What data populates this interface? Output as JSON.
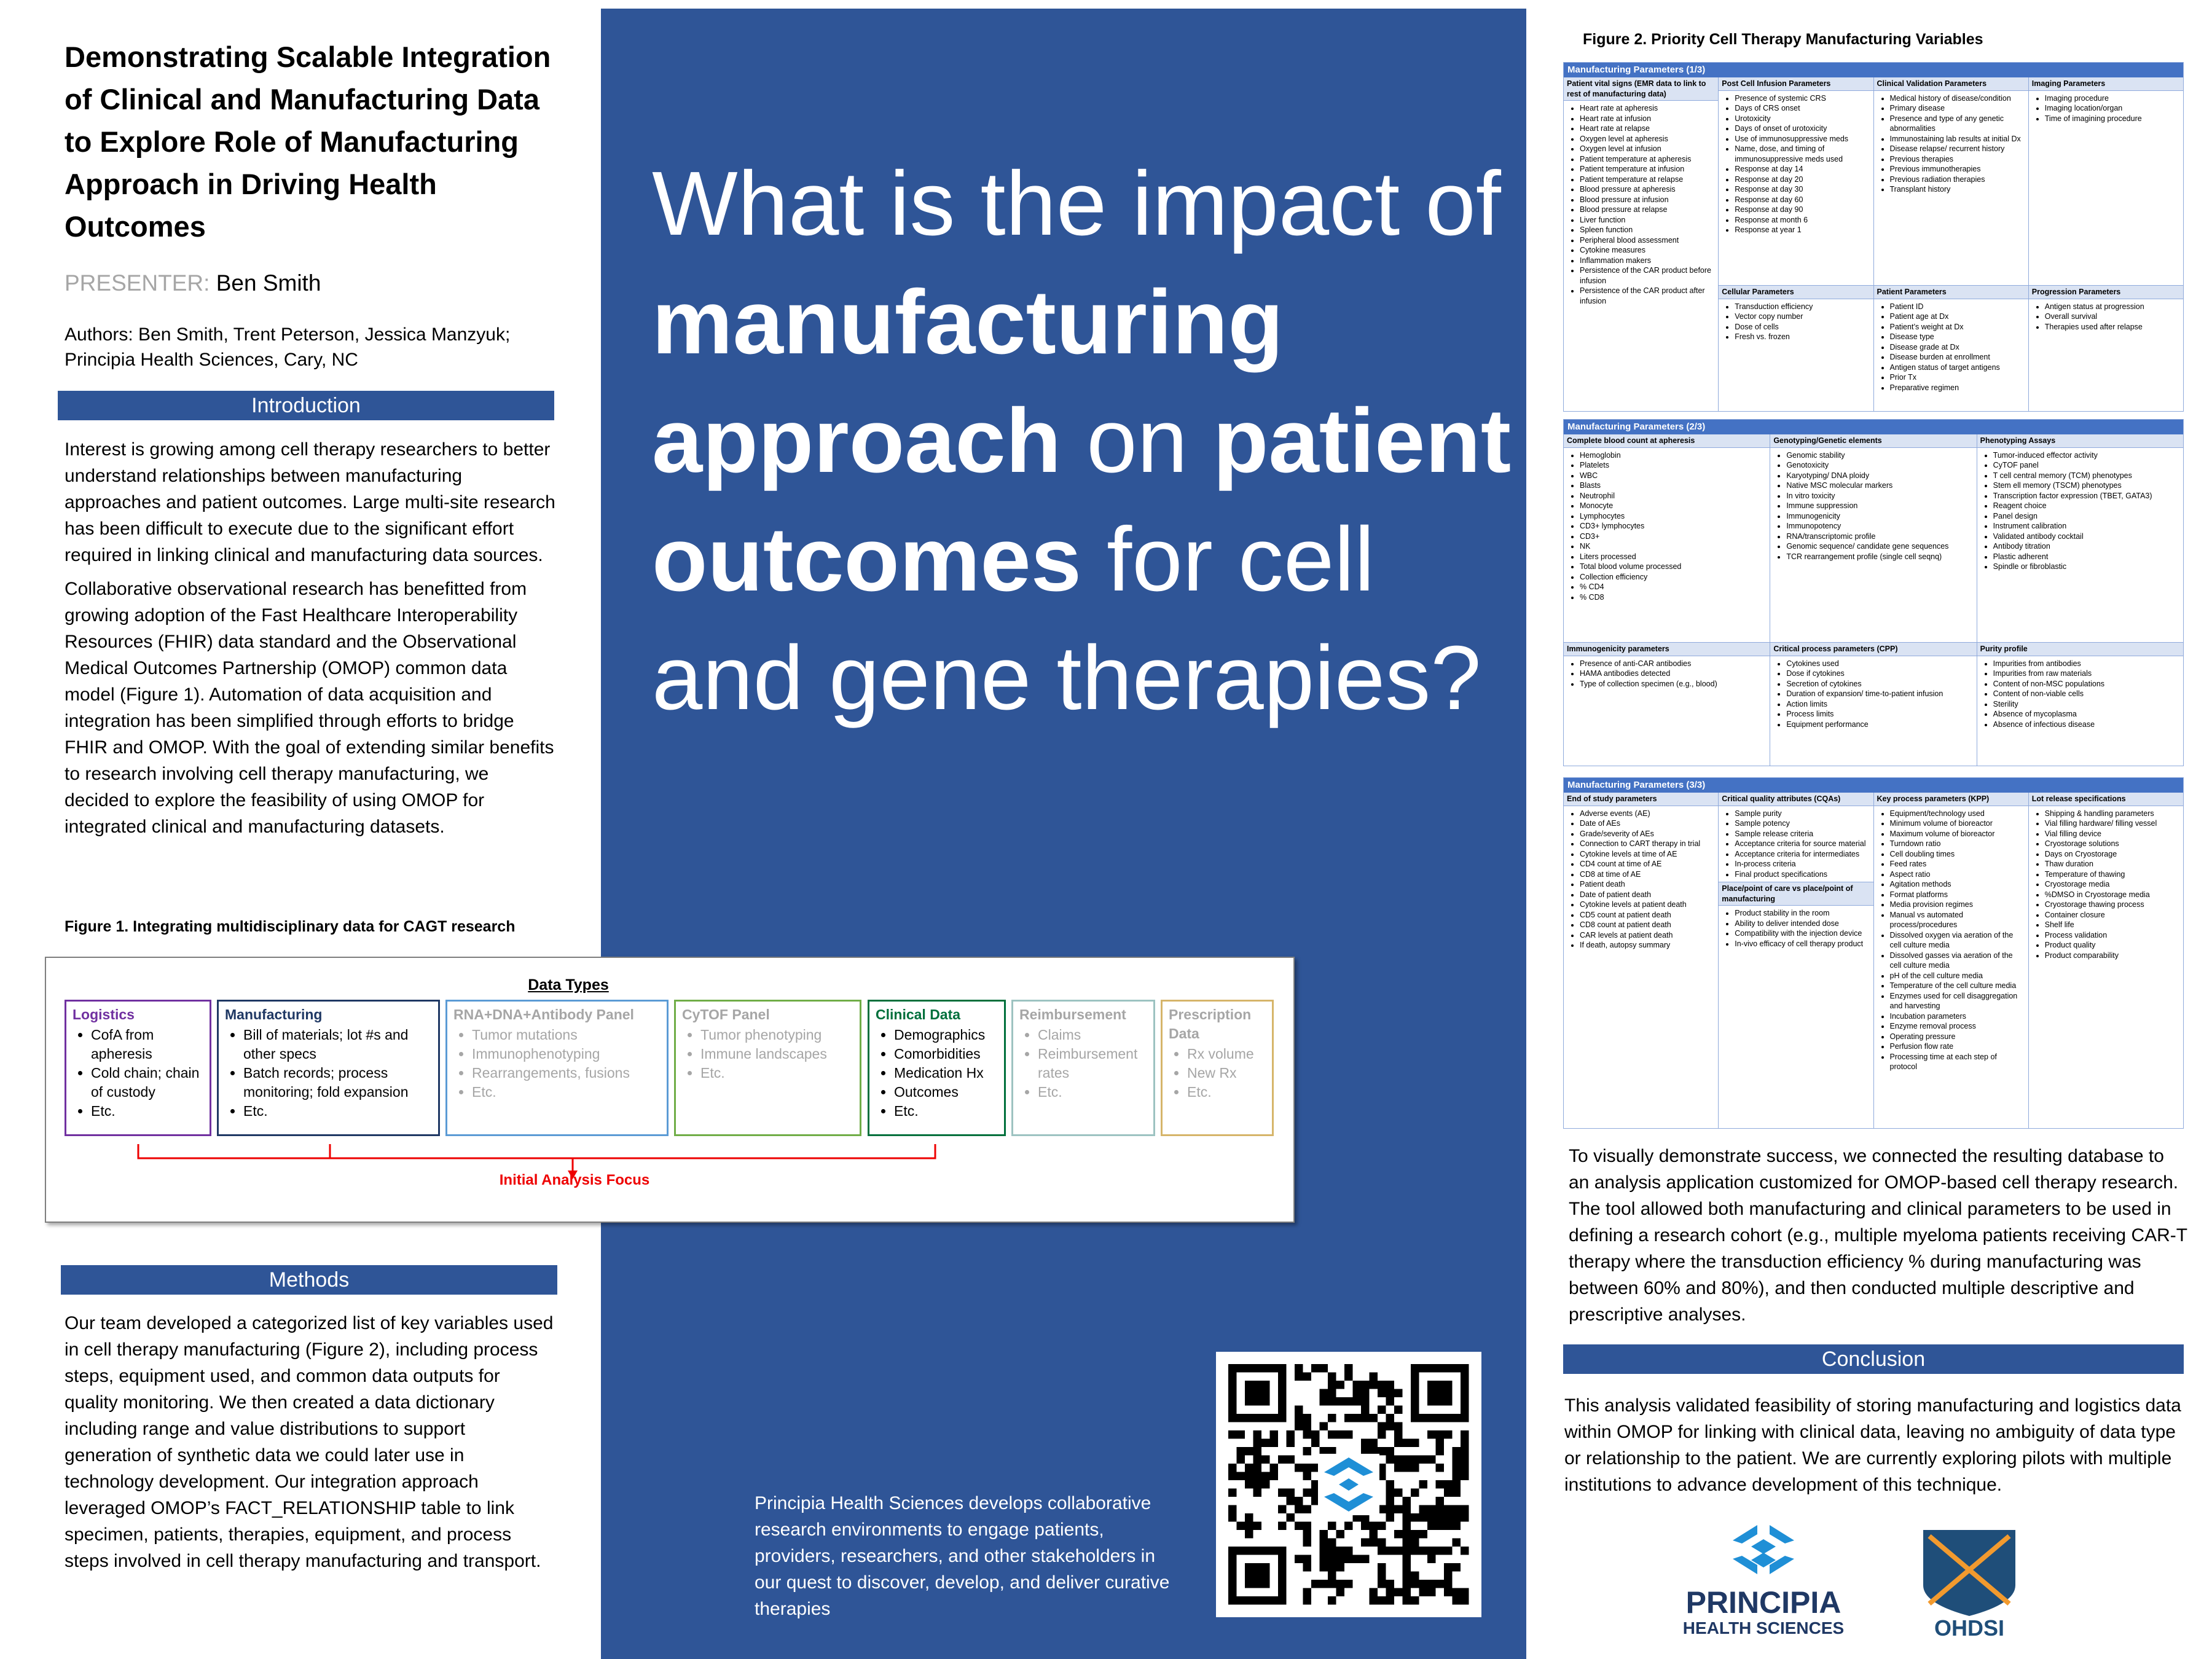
{
  "title": "Demonstrating Scalable Integration of Clinical and Manufacturing Data to Explore Role of Manufacturing Approach in Driving Health Outcomes",
  "presenter": {
    "label": "PRESENTER:",
    "name": "Ben Smith"
  },
  "authors": "Authors: Ben Smith, Trent Peterson, Jessica Manzyuk;",
  "affiliation": "Principia Health Sciences, Cary, NC",
  "introduction": {
    "heading": "Introduction",
    "paragraphs": [
      "Interest is growing among cell therapy researchers to better understand relationships between manufacturing approaches and patient outcomes. Large multi-site research has been difficult to execute due to the significant effort required in linking clinical and manufacturing data sources.",
      "Collaborative observational research has benefitted from growing adoption of the Fast Healthcare Interoperability Resources (FHIR) data standard and the Observational Medical Outcomes Partnership (OMOP) common data model (Figure 1). Automation of data acquisition and integration has been simplified through efforts to bridge FHIR and OMOP. With the goal of extending similar benefits to research involving cell therapy manufacturing, we decided to explore the feasibility of using OMOP for integrated clinical and manufacturing datasets."
    ]
  },
  "figure1": {
    "caption": "Figure 1. Integrating multidisciplinary data for CAGT research",
    "heading": "Data Types",
    "focus_label": "Initial Analysis Focus",
    "columns": [
      {
        "title": "Logistics",
        "color": "#7030a0",
        "muted": false,
        "items": [
          "CofA from apheresis",
          "Cold chain; chain of custody",
          "Etc."
        ]
      },
      {
        "title": "Manufacturing",
        "color": "#1f3864",
        "muted": false,
        "items": [
          "Bill of materials; lot #s and other specs",
          "Batch records; process monitoring; fold expansion",
          "Etc."
        ]
      },
      {
        "title": "RNA+DNA+Antibody Panel",
        "color": "#5b9bd5",
        "muted": true,
        "items": [
          "Tumor mutations",
          "Immunophenotyping",
          "Rearrangements, fusions",
          "Etc."
        ]
      },
      {
        "title": "CyTOF Panel",
        "color": "#70ad47",
        "muted": true,
        "items": [
          "Tumor phenotyping",
          "Immune landscapes",
          "Etc."
        ]
      },
      {
        "title": "Clinical Data",
        "color": "#00703c",
        "muted": false,
        "items": [
          "Demographics",
          "Comorbidities",
          "Medication Hx",
          "Outcomes",
          "Etc."
        ]
      },
      {
        "title": "Reimbursement",
        "color": "#9dc3c1",
        "muted": true,
        "items": [
          "Claims",
          "Reimbursement rates",
          "Etc."
        ]
      },
      {
        "title": "Prescription Data",
        "color": "#d6b56a",
        "muted": true,
        "items": [
          "Rx volume",
          "New Rx",
          "Etc."
        ]
      }
    ]
  },
  "methods": {
    "heading": "Methods",
    "paragraphs": [
      "Our team developed a categorized list of key variables used in cell therapy manufacturing (Figure 2), including process steps, equipment used, and common data outputs for quality monitoring. We then created a data dictionary including range and value distributions to support generation of synthetic data we could later use in technology development. Our integration approach leveraged OMOP’s FACT_RELATIONSHIP table to link specimen, patients, therapies, equipment, and process steps involved in cell therapy manufacturing and transport."
    ]
  },
  "question": [
    {
      "text": "What is the impact of ",
      "bold": false
    },
    {
      "text": "manufacturing approach",
      "bold": true
    },
    {
      "text": " on ",
      "bold": false
    },
    {
      "text": "patient outcomes",
      "bold": true
    },
    {
      "text": " for cell and gene therapies?",
      "bold": false
    }
  ],
  "footer": "Principia Health Sciences develops collaborative research environments to engage patients, providers, researchers, and other stakeholders in our quest to discover, develop, and deliver curative therapies",
  "figure2": {
    "caption": "Figure 2. Priority Cell Therapy Manufacturing Variables",
    "panels": [
      {
        "title": "Manufacturing Parameters (1/3)",
        "columns": [
          {
            "sections": [
              {
                "heading": "Patient vital signs (EMR data to link to rest of manufacturing data)",
                "items": [
                  "Heart rate at apheresis",
                  "Heart rate at infusion",
                  "Heart rate at relapse",
                  "Oxygen level at apheresis",
                  "Oxygen level at infusion",
                  "Patient temperature at apheresis",
                  "Patient temperature at infusion",
                  "Patient temperature at relapse",
                  "Blood pressure at apheresis",
                  "Blood pressure at infusion",
                  "Blood pressure at relapse",
                  "Liver function",
                  "Spleen function",
                  "Peripheral blood assessment",
                  "Cytokine measures",
                  "Inflammation makers",
                  "Persistence of the CAR product before infusion",
                  "Persistence of the CAR product after infusion"
                ]
              }
            ]
          },
          {
            "sections": [
              {
                "heading": "Post Cell Infusion Parameters",
                "items": [
                  "Presence of systemic CRS",
                  "Days of CRS onset",
                  "Urotoxicity",
                  "Days of onset of urotoxicity",
                  "Use of immunosuppressive meds",
                  "Name, dose, and timing of immunosuppressive meds used",
                  "Response at day 14",
                  "Response at day 20",
                  "Response at day 30",
                  "Response at day 60",
                  "Response at day 90",
                  "Response at month 6",
                  "Response at year 1"
                ]
              },
              {
                "heading": "Cellular Parameters",
                "items": [
                  "Transduction efficiency",
                  "Vector copy number",
                  "Dose of cells",
                  "Fresh vs. frozen"
                ]
              }
            ]
          },
          {
            "sections": [
              {
                "heading": "Clinical Validation Parameters",
                "items": [
                  "Medical history of disease/condition",
                  "Primary disease",
                  "Presence and type of any genetic abnormalities",
                  "Immunostaining lab results at initial Dx",
                  "Disease relapse/ recurrent history",
                  "Previous therapies",
                  "Previous immunotherapies",
                  "Previous radiation therapies",
                  "Transplant history"
                ]
              },
              {
                "heading": "Patient Parameters",
                "items": [
                  "Patient ID",
                  "Patient age at Dx",
                  "Patient’s weight at Dx",
                  "Disease type",
                  "Disease grade at Dx",
                  "Disease burden at enrollment",
                  "Antigen status of target antigens",
                  "Prior Tx",
                  "Preparative regimen"
                ]
              }
            ]
          },
          {
            "sections": [
              {
                "heading": "Imaging Parameters",
                "items": [
                  "Imaging procedure",
                  "Imaging location/organ",
                  "Time of imagining procedure"
                ]
              },
              {
                "heading": "Progression Parameters",
                "items": [
                  "Antigen status at progression",
                  "Overall survival",
                  "Therapies used after relapse"
                ]
              }
            ]
          }
        ]
      },
      {
        "title": "Manufacturing Parameters (2/3)",
        "columns": [
          {
            "sections": [
              {
                "heading": "Complete blood count at apheresis",
                "items": [
                  "Hemoglobin",
                  "Platelets",
                  "WBC",
                  "Blasts",
                  "Neutrophil",
                  "Monocyte",
                  "Lymphocytes",
                  "CD3+ lymphocytes",
                  "CD3+",
                  "NK",
                  "Liters processed",
                  "Total blood volume processed",
                  "Collection efficiency",
                  "% CD4",
                  "% CD8"
                ]
              },
              {
                "heading": "Immunogenicity parameters",
                "items": [
                  "Presence of anti-CAR antibodies",
                  "HAMA antibodies detected",
                  "Type of collection specimen (e.g., blood)"
                ]
              }
            ]
          },
          {
            "sections": [
              {
                "heading": "Genotyping/Genetic elements",
                "items": [
                  "Genomic stability",
                  "Genotoxicity",
                  "Karyotyping/ DNA ploidy",
                  "Native MSC molecular markers",
                  "In vitro toxicity",
                  "Immune suppression",
                  "Immunogenicity",
                  "Immunopotency",
                  "RNA/transcriptomic profile",
                  "Genomic sequence/ candidate gene sequences",
                  "TCR rearrangement profile (single cell seqnq)"
                ]
              },
              {
                "heading": "Critical process parameters (CPP)",
                "items": [
                  "Cytokines used",
                  "Dose if cytokines",
                  "Secretion of cytokines",
                  "Duration of expansion/ time-to-patient infusion",
                  "Action limits",
                  "Process limits",
                  "Equipment performance"
                ]
              }
            ]
          },
          {
            "sections": [
              {
                "heading": "Phenotyping Assays",
                "items": [
                  "Tumor-induced effector activity",
                  "CyTOF panel",
                  "T cell central memory (TCM) phenotypes",
                  "Stem ell memory (TSCM) phenotypes",
                  "Transcription factor expression (TBET, GATA3)",
                  "Reagent choice",
                  "Panel design",
                  "Instrument calibration",
                  "Validated antibody cocktail",
                  "Antibody titration",
                  "Plastic adherent",
                  "Spindle or fibroblastic"
                ]
              },
              {
                "heading": "Purity profile",
                "items": [
                  "Impurities from antibodies",
                  "Impurities from raw materials",
                  "Content of non-MSC populations",
                  "Content of non-viable cells",
                  "Sterility",
                  "Absence of mycoplasma",
                  "Absence of infectious disease"
                ]
              }
            ]
          }
        ]
      },
      {
        "title": "Manufacturing Parameters (3/3)",
        "columns": [
          {
            "sections": [
              {
                "heading": "End of study parameters",
                "items": [
                  "Adverse events (AE)",
                  "Date of AEs",
                  "Grade/severity of AEs",
                  "Connection to CART therapy in trial",
                  "Cytokine levels at time of AE",
                  "CD4 count at time of AE",
                  "CD8 at time of AE",
                  "Patient death",
                  "Date of patient death",
                  "Cytokine levels at patient death",
                  "CD5 count at patient death",
                  "CD8 count at patient death",
                  "CAR levels at patient death",
                  "If death, autopsy summary"
                ]
              }
            ]
          },
          {
            "sections": [
              {
                "heading": "Critical quality attributes (CQAs)",
                "items": [
                  "Sample purity",
                  "Sample potency",
                  "Sample release criteria",
                  "Acceptance criteria for source material",
                  "Acceptance criteria for intermediates",
                  "In-process criteria",
                  "Final product specifications"
                ]
              },
              {
                "heading": "Place/point of care vs place/point of manufacturing",
                "items": [
                  "Product stability in the room",
                  "Ability to deliver intended dose",
                  "Compatibility with the injection device",
                  "In-vivo efficacy of cell therapy product"
                ]
              }
            ]
          },
          {
            "sections": [
              {
                "heading": "Key process parameters (KPP)",
                "items": [
                  "Equipment/technology used",
                  "Minimum volume of bioreactor",
                  "Maximum volume of bioreactor",
                  "Turndown ratio",
                  "Cell doubling times",
                  "Feed rates",
                  "Aspect ratio",
                  "Agitation methods",
                  "Format platforms",
                  "Media provision regimes",
                  "Manual vs automated process/procedures",
                  "Dissolved oxygen via aeration of the cell culture media",
                  "Dissolved gasses via aeration of the cell culture media",
                  "pH of the cell culture media",
                  "Temperature of the cell culture media",
                  "Enzymes used for cell disaggregation and harvesting",
                  "Incubation parameters",
                  "Enzyme removal process",
                  "Operating pressure",
                  "Perfusion flow rate",
                  "Processing time at each step of protocol"
                ]
              }
            ]
          },
          {
            "sections": [
              {
                "heading": "Lot release specifications",
                "items": [
                  "Shipping & handling parameters",
                  "Vial filling hardware/ filling vessel",
                  "Vial filling device",
                  "Cryostorage solutions",
                  "Days on Cryostorage",
                  "Thaw duration",
                  "Temperature of thawing",
                  "Cryostorage media",
                  "%DMSO in Cryostorage media",
                  "Cryostorage thawing process",
                  "Container closure",
                  "Shelf life",
                  "Process validation",
                  "Product quality",
                  "Product comparability"
                ]
              }
            ]
          }
        ]
      }
    ]
  },
  "results": "To visually demonstrate success, we connected the resulting database to an analysis application customized for OMOP-based cell therapy research. The tool allowed both manufacturing and clinical parameters to be used in defining a research cohort (e.g., multiple myeloma patients receiving CAR-T therapy where the transduction efficiency % during manufacturing was between 60% and 80%), and then conducted multiple descriptive and prescriptive analyses.",
  "conclusion": {
    "heading": "Conclusion",
    "text": "This analysis validated feasibility of storing manufacturing and logistics data within OMOP for linking with clinical data, leaving no ambiguity of data type or relationship to the patient. We are currently exploring pilots with multiple institutions to advance development of this technique."
  },
  "logos": {
    "principia_name": "PRINCIPIA",
    "principia_sub": "HEALTH SCIENCES",
    "ohdsi": "OHDSI"
  }
}
